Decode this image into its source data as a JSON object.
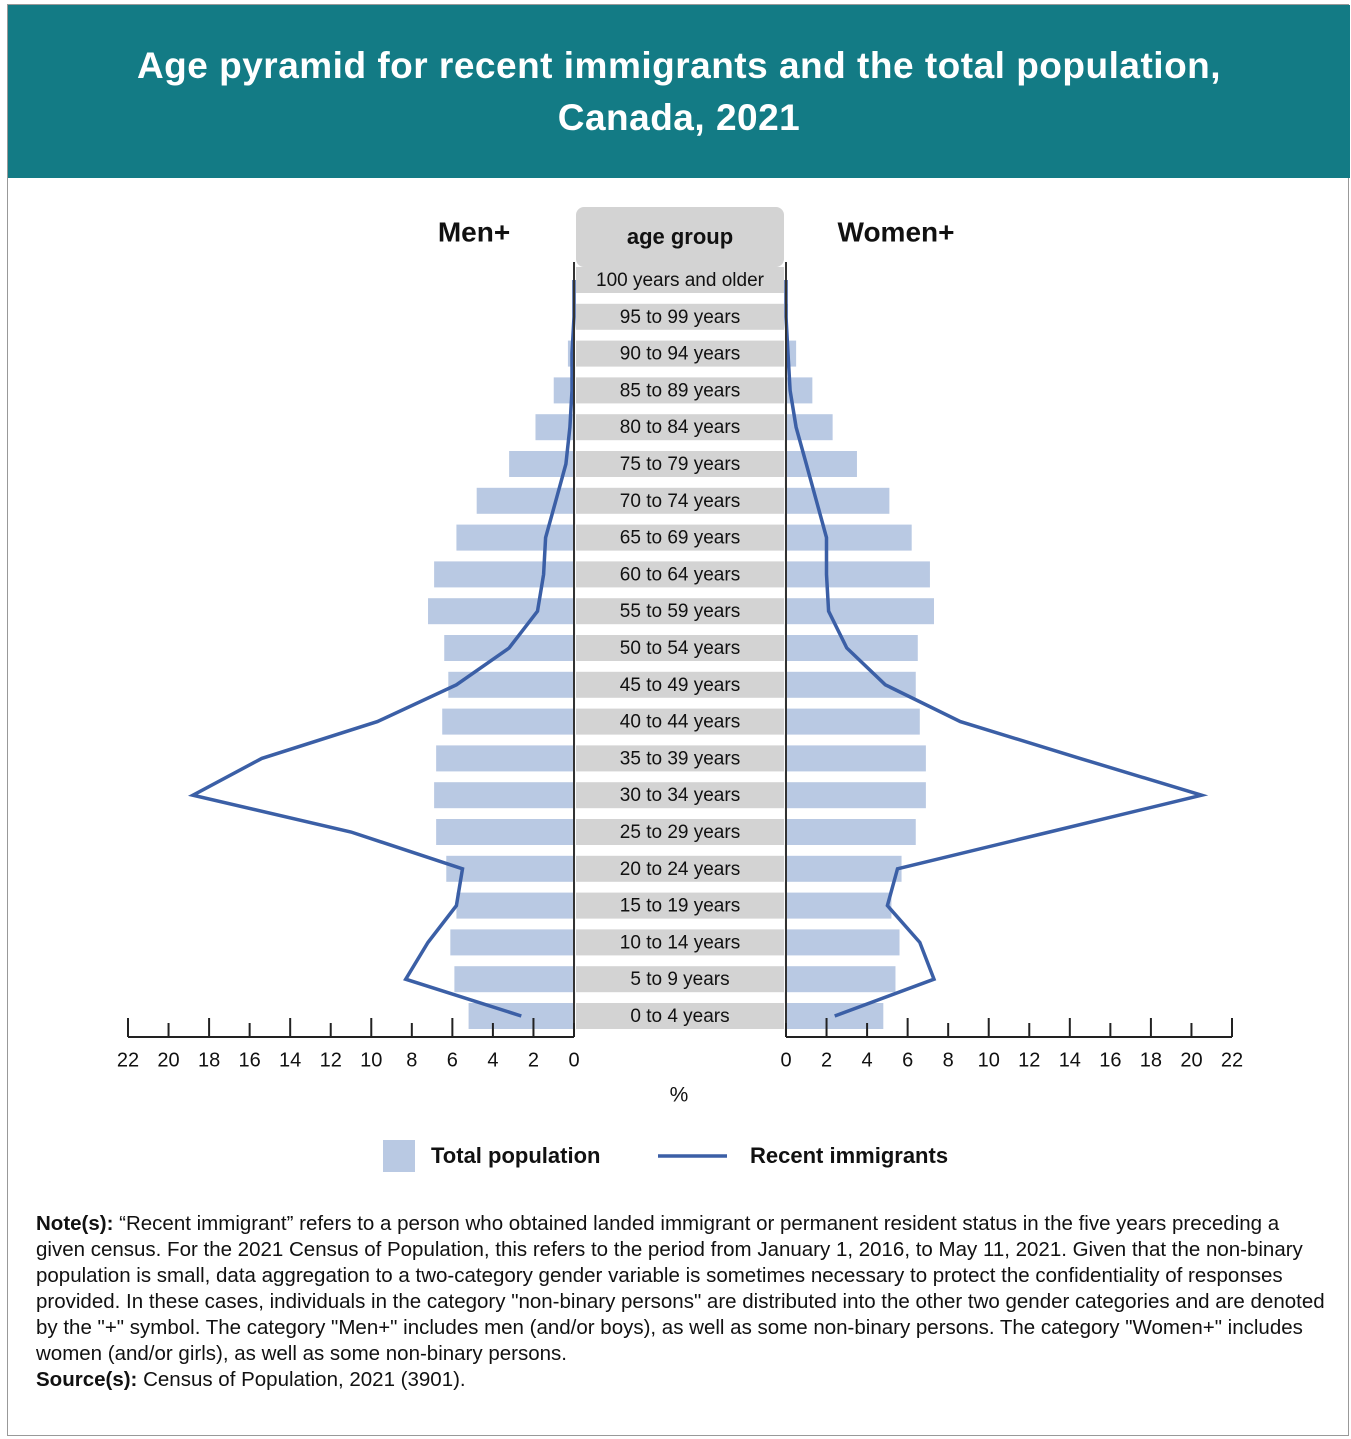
{
  "chart_data": {
    "type": "pyramid",
    "title": "Age pyramid for recent immigrants and the total population, Canada, 2021",
    "category_header": "age group",
    "sides": [
      "Men+",
      "Women+"
    ],
    "categories": [
      "100 years and older",
      "95 to 99 years",
      "90 to 94 years",
      "85 to 89 years",
      "80 to 84 years",
      "75 to 79 years",
      "70 to 74 years",
      "65 to 69 years",
      "60 to 64 years",
      "55 to 59 years",
      "50 to 54 years",
      "45 to 49 years",
      "40 to 44 years",
      "35 to 39 years",
      "30 to 34 years",
      "25 to 29 years",
      "20 to 24 years",
      "15 to 19 years",
      "10 to 14 years",
      "5 to 9 years",
      "0 to 4 years"
    ],
    "series": [
      {
        "name": "Total population",
        "type": "bar",
        "color": "#b9c9e3",
        "values": [
          [
            0.0,
            0.05,
            0.3,
            1.0,
            1.9,
            3.2,
            4.8,
            5.8,
            6.9,
            7.2,
            6.4,
            6.2,
            6.5,
            6.8,
            6.9,
            6.8,
            6.3,
            5.8,
            6.1,
            5.9,
            5.2
          ],
          [
            0.0,
            0.1,
            0.5,
            1.3,
            2.3,
            3.5,
            5.1,
            6.2,
            7.1,
            7.3,
            6.5,
            6.4,
            6.6,
            6.9,
            6.9,
            6.4,
            5.7,
            5.2,
            5.6,
            5.4,
            4.8
          ]
        ]
      },
      {
        "name": "Recent immigrants",
        "type": "line",
        "color": "#3b5fa6",
        "values": [
          [
            0.0,
            0.0,
            0.1,
            0.1,
            0.2,
            0.4,
            0.9,
            1.4,
            1.5,
            1.8,
            3.2,
            5.8,
            9.7,
            15.4,
            18.8,
            11.0,
            5.5,
            5.8,
            7.2,
            8.3,
            2.6
          ],
          [
            0.0,
            0.0,
            0.1,
            0.2,
            0.5,
            1.0,
            1.5,
            2.0,
            2.0,
            2.1,
            3.0,
            4.9,
            8.6,
            14.5,
            20.5,
            13.0,
            5.5,
            5.0,
            6.6,
            7.3,
            2.4
          ]
        ]
      }
    ],
    "xlim": [
      0,
      22
    ],
    "xticks": [
      0,
      2,
      4,
      6,
      8,
      10,
      12,
      14,
      16,
      18,
      20,
      22
    ],
    "xlabel": "%"
  },
  "notes": {
    "note_label": "Note(s):",
    "note_text": "“Recent immigrant” refers to a person who obtained landed immigrant or permanent resident status in the five years preceding a given census. For the 2021 Census of Population, this refers to the period from January 1, 2016, to May 11, 2021. Given that the non-binary population is small, data aggregation to a two-category gender variable is sometimes necessary to protect the confidentiality of responses provided. In these cases, individuals in the category \"non-binary persons\" are distributed into the other two gender categories and are denoted by the \"+\" symbol. The category \"Men+\" includes men (and/or boys), as well as some non-binary persons. The category \"Women+\" includes women (and/or girls), as well as some non-binary persons.",
    "source_label": "Source(s):",
    "source_text": "Census of Population, 2021 (3901)."
  }
}
